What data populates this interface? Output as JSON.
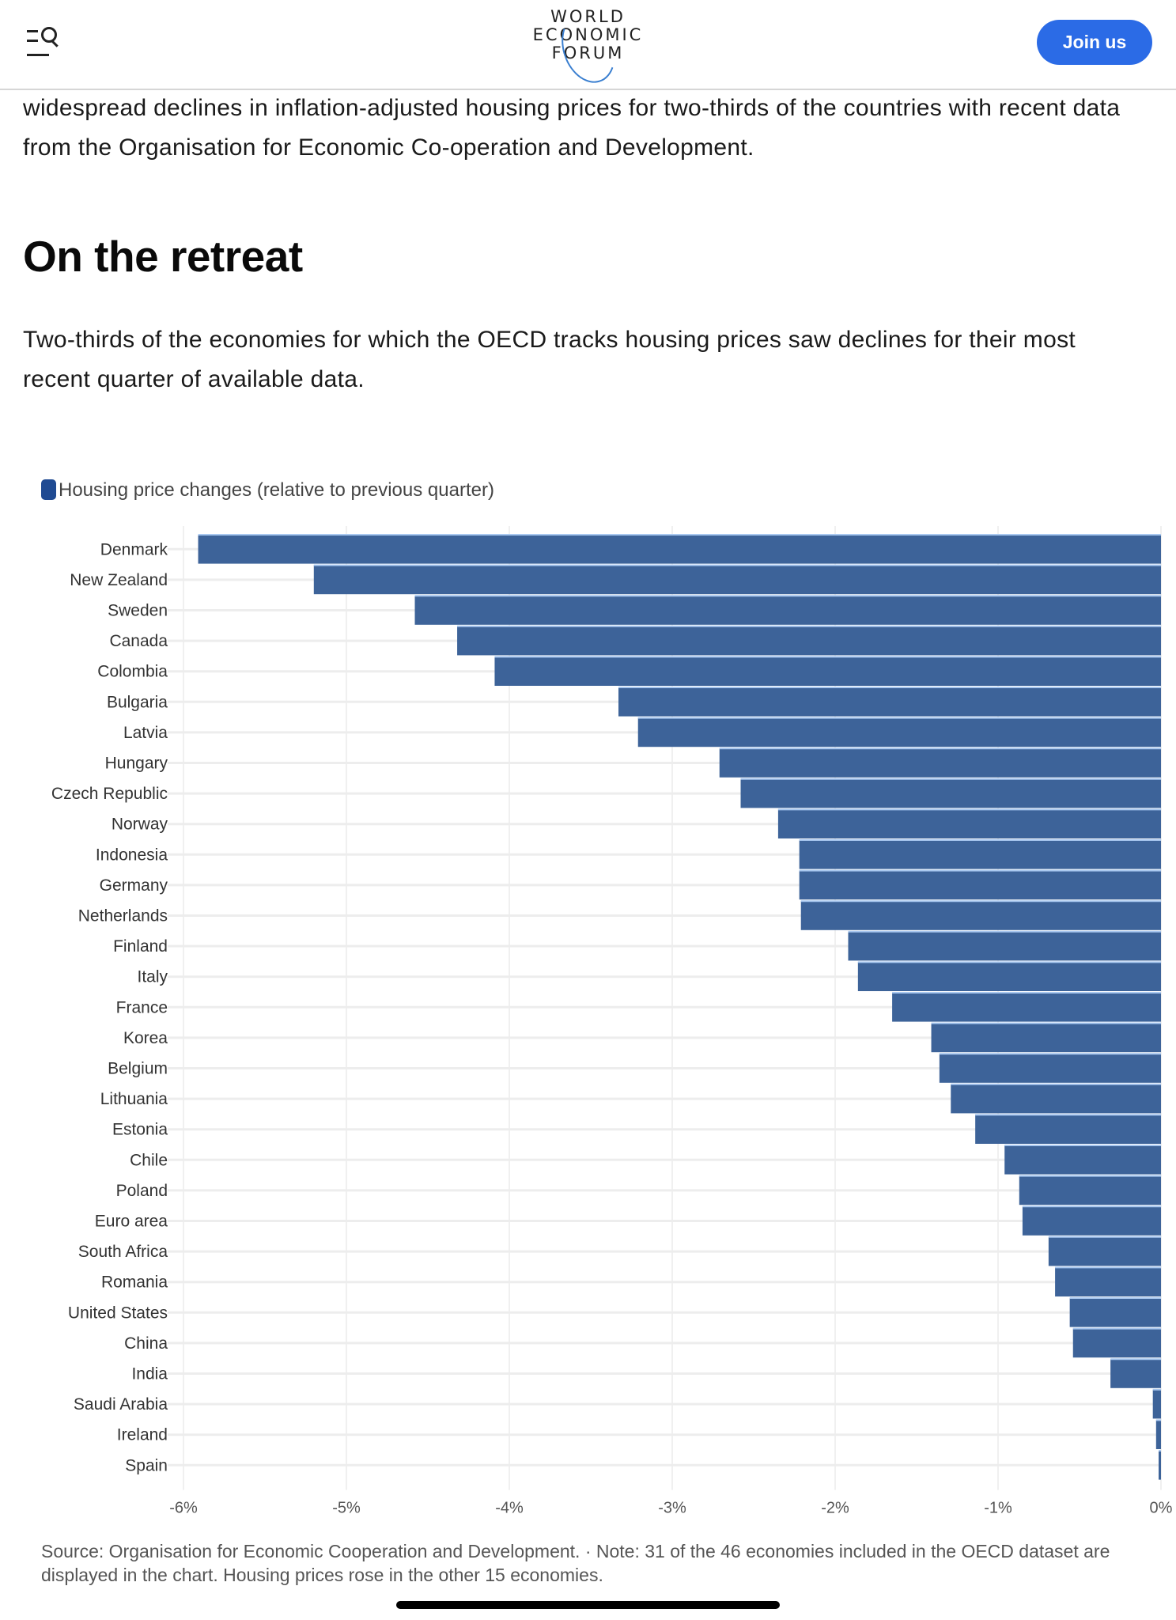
{
  "header": {
    "logo_lines": [
      "WORLD",
      "ECONOMIC",
      "FORUM"
    ],
    "join_label": "Join us",
    "menu_icon": "menu-search-icon"
  },
  "article": {
    "intro": "widespread declines in inflation-adjusted housing prices for two-thirds of the countries with recent data from the Organisation for Economic Co-operation and Development.",
    "heading": "On the retreat",
    "subtext": "Two-thirds of the economies for which the OECD tracks housing prices saw declines for their most recent quarter of available data.",
    "source": "Source: Organisation for Economic Cooperation and Development. · Note: 31 of the 46 economies included in the OECD dataset are displayed in the chart. Housing prices rose in the other 15 economies."
  },
  "colors": {
    "accent": "#2b6be6",
    "bar": "#3d6399",
    "bar_highlight": "#a9c8f0",
    "legend": "#1f4a92"
  },
  "chart_data": {
    "type": "bar",
    "orientation": "horizontal",
    "title": "",
    "legend": [
      {
        "name": "Housing price changes (relative to previous quarter)",
        "placement": "top-left"
      }
    ],
    "xlabel": "",
    "ylabel": "",
    "xlim": [
      -6,
      0
    ],
    "x_ticks": [
      -6,
      -5,
      -4,
      -3,
      -2,
      -1,
      0
    ],
    "x_tick_labels": [
      "-6%",
      "-5%",
      "-4%",
      "-3%",
      "-2%",
      "-1%",
      "0%"
    ],
    "grid": true,
    "categories": [
      "Denmark",
      "New Zealand",
      "Sweden",
      "Canada",
      "Colombia",
      "Bulgaria",
      "Latvia",
      "Hungary",
      "Czech Republic",
      "Norway",
      "Indonesia",
      "Germany",
      "Netherlands",
      "Finland",
      "Italy",
      "France",
      "Korea",
      "Belgium",
      "Lithuania",
      "Estonia",
      "Chile",
      "Poland",
      "Euro area",
      "South Africa",
      "Romania",
      "United States",
      "China",
      "India",
      "Saudi Arabia",
      "Ireland",
      "Spain"
    ],
    "series": [
      {
        "name": "Housing price changes (relative to previous quarter)",
        "unit": "%",
        "values": [
          -5.91,
          -5.2,
          -4.58,
          -4.32,
          -4.09,
          -3.33,
          -3.21,
          -2.71,
          -2.58,
          -2.35,
          -2.22,
          -2.22,
          -2.21,
          -1.92,
          -1.86,
          -1.65,
          -1.41,
          -1.36,
          -1.29,
          -1.14,
          -0.96,
          -0.87,
          -0.85,
          -0.69,
          -0.65,
          -0.56,
          -0.54,
          -0.31,
          -0.05,
          -0.03,
          -0.01
        ]
      }
    ]
  }
}
